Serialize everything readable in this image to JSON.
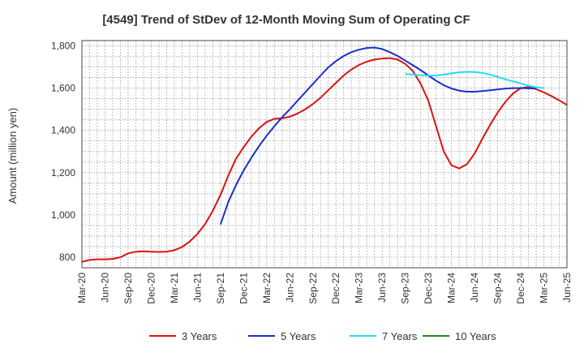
{
  "chart_data": {
    "type": "line",
    "title": "[4549]  Trend of StDev of 12-Month Moving Sum of Operating CF",
    "xlabel": "",
    "ylabel": "Amount (million yen)",
    "ylim": [
      750,
      1825
    ],
    "yticks": [
      800,
      1000,
      1200,
      1400,
      1600,
      1800
    ],
    "ytick_labels": [
      "800",
      "1,000",
      "1,200",
      "1,400",
      "1,600",
      "1,800"
    ],
    "xtick_labels": [
      "Mar-20",
      "Jun-20",
      "Sep-20",
      "Dec-20",
      "Mar-21",
      "Jun-21",
      "Sep-21",
      "Dec-21",
      "Mar-22",
      "Jun-22",
      "Sep-22",
      "Dec-22",
      "Mar-23",
      "Jun-23",
      "Sep-23",
      "Dec-23",
      "Mar-24",
      "Jun-24",
      "Sep-24",
      "Dec-24",
      "Mar-25",
      "Jun-25"
    ],
    "x_months": 63,
    "grid": true,
    "legend_position": "bottom",
    "series": [
      {
        "name": "3 Years",
        "color": "#dd1111",
        "start_month": 0,
        "values": [
          778,
          787,
          790,
          790,
          792,
          800,
          818,
          826,
          828,
          826,
          825,
          826,
          833,
          848,
          874,
          910,
          957,
          1020,
          1095,
          1185,
          1265,
          1320,
          1370,
          1410,
          1440,
          1455,
          1457,
          1465,
          1480,
          1500,
          1525,
          1555,
          1590,
          1625,
          1660,
          1688,
          1710,
          1725,
          1735,
          1740,
          1742,
          1735,
          1715,
          1680,
          1620,
          1540,
          1420,
          1300,
          1235,
          1220,
          1240,
          1290,
          1360,
          1425,
          1485,
          1535,
          1575,
          1600,
          1605,
          1595,
          1580,
          1562,
          1542,
          1520
        ]
      },
      {
        "name": "5 Years",
        "color": "#1a2fcc",
        "start_month": 18,
        "values": [
          955,
          1060,
          1140,
          1210,
          1270,
          1325,
          1375,
          1420,
          1462,
          1500,
          1540,
          1580,
          1620,
          1660,
          1698,
          1728,
          1752,
          1770,
          1782,
          1790,
          1792,
          1785,
          1770,
          1752,
          1730,
          1708,
          1685,
          1660,
          1635,
          1614,
          1598,
          1588,
          1583,
          1583,
          1586,
          1590,
          1594,
          1598,
          1600,
          1600,
          1599,
          1598
        ]
      },
      {
        "name": "7 Years",
        "color": "#22ddee",
        "start_month": 42,
        "values": [
          1667,
          1664,
          1661,
          1659,
          1660,
          1664,
          1670,
          1675,
          1677,
          1676,
          1672,
          1664,
          1653,
          1642,
          1632,
          1622,
          1612,
          1604,
          1600
        ]
      },
      {
        "name": "10 Years",
        "color": "#228822",
        "start_month": 0,
        "values": []
      }
    ]
  }
}
